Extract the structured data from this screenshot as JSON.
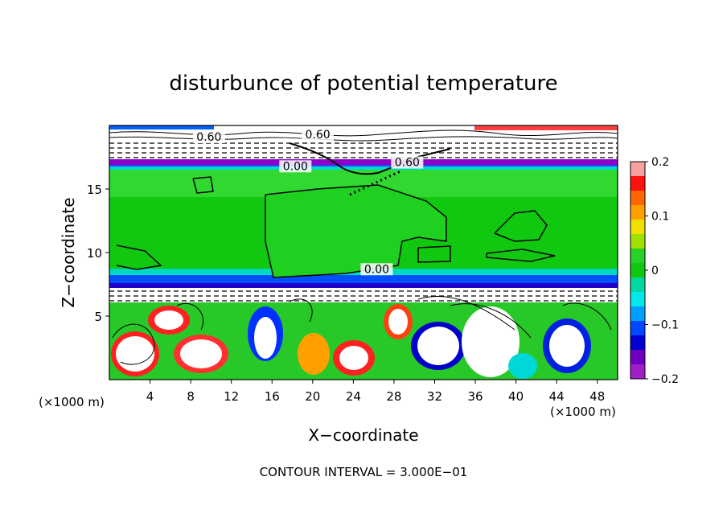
{
  "chart_data": {
    "type": "heatmap",
    "title": "disturbunce of potential temperature",
    "xlabel": "X−coordinate",
    "ylabel": "Z−coordinate",
    "x_unit": "(×1000 m)",
    "y_unit": "(×1000 m)",
    "xlim": [
      0,
      50
    ],
    "ylim": [
      0,
      20
    ],
    "x_ticks": [
      4,
      8,
      12,
      16,
      20,
      24,
      28,
      32,
      36,
      40,
      44,
      48
    ],
    "y_ticks": [
      5,
      10,
      15
    ],
    "colorbar": {
      "min": -0.2,
      "max": 0.2,
      "ticks": [
        "0.2",
        "0.1",
        "0",
        "−0.1",
        "−0.2"
      ],
      "colors": [
        "#f7a0a0",
        "#ff1010",
        "#ff6600",
        "#ffa000",
        "#f0e000",
        "#a0e000",
        "#28d028",
        "#10c810",
        "#00d8a0",
        "#00e8e8",
        "#00a0ff",
        "#0048ff",
        "#0000d0",
        "#7000c0",
        "#a020c8"
      ]
    },
    "contour_labels": [
      {
        "text": "0.60",
        "x": 20.5,
        "y": 19.0
      },
      {
        "text": "0.60",
        "x": 9.8,
        "y": 18.8
      },
      {
        "text": "0.60",
        "x": 29.3,
        "y": 16.8
      },
      {
        "text": "0.00",
        "x": 18.3,
        "y": 16.5
      },
      {
        "text": "0.00",
        "x": 26.3,
        "y": 8.4
      }
    ],
    "footer": "CONTOUR INTERVAL = 3.000E−01"
  }
}
